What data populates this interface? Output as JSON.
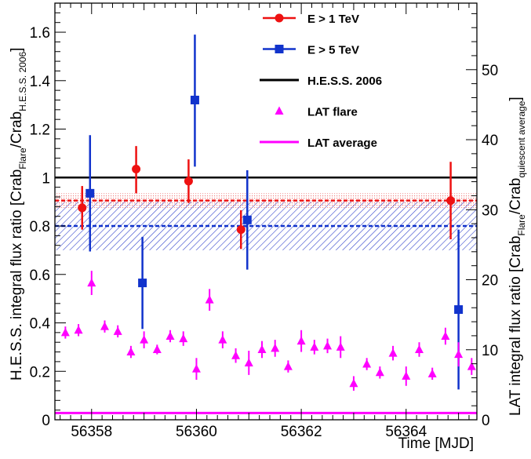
{
  "chart_data": {
    "type": "scatter",
    "xlabel": "Time [MJD]",
    "ylabel_left": "H.E.S.S. integral flux ratio [Crab",
    "ylabel_left_sub": "Flare",
    "ylabel_left_mid": "/Crab",
    "ylabel_left_sub2": "H.E.S.S. 2006",
    "ylabel_left_end": "]",
    "ylabel_right": "LAT integral flux ratio [Crab",
    "ylabel_right_sub": "Flare",
    "ylabel_right_mid": "/Crab",
    "ylabel_right_sub2": "quiescent average",
    "ylabel_right_end": "]",
    "xlim": [
      56357.3,
      56365.35
    ],
    "ylim_left": [
      0,
      1.72
    ],
    "ylim_right": [
      0,
      59.5
    ],
    "xticks": [
      56358,
      56360,
      56362,
      56364
    ],
    "xtick_labels": [
      "56358",
      "56360",
      "56362",
      "56364"
    ],
    "yticks_left": [
      0,
      0.2,
      0.4,
      0.6,
      0.8,
      1,
      1.2,
      1.4,
      1.6
    ],
    "ytick_labels_left": [
      "0",
      "0.2",
      "0.4",
      "0.6",
      "0.8",
      "1",
      "1.2",
      "1.4",
      "1.6"
    ],
    "yticks_right": [
      0,
      10,
      20,
      30,
      40,
      50
    ],
    "ytick_labels_right": [
      "0",
      "10",
      "20",
      "30",
      "40",
      "50"
    ],
    "colors": {
      "e1": "#ee1111",
      "e5": "#1133cc",
      "hess": "#000000",
      "lat": "#ff00ff",
      "band_red": "#f2a0a0",
      "band_blue": "#3344cc"
    },
    "hess_2006": 1.0,
    "lat_average": 0.028,
    "bands": [
      {
        "name": "E > 1 TeV",
        "mean": 0.905,
        "low": 0.875,
        "high": 0.935
      },
      {
        "name": "E > 5 TeV",
        "mean": 0.8,
        "low": 0.7,
        "high": 0.9
      }
    ],
    "series": [
      {
        "name": "E > 1 TeV",
        "marker": "circle",
        "points": [
          {
            "x": 56357.82,
            "y": 0.875,
            "ylo": 0.785,
            "yhi": 0.965
          },
          {
            "x": 56358.85,
            "y": 1.035,
            "ylo": 0.935,
            "yhi": 1.13
          },
          {
            "x": 56359.85,
            "y": 0.985,
            "ylo": 0.895,
            "yhi": 1.075
          },
          {
            "x": 56360.85,
            "y": 0.785,
            "ylo": 0.705,
            "yhi": 0.865
          },
          {
            "x": 56364.85,
            "y": 0.905,
            "ylo": 0.745,
            "yhi": 1.065
          }
        ]
      },
      {
        "name": "E > 5 TeV",
        "marker": "square",
        "points": [
          {
            "x": 56357.97,
            "y": 0.935,
            "ylo": 0.695,
            "yhi": 1.175
          },
          {
            "x": 56358.97,
            "y": 0.565,
            "ylo": 0.375,
            "yhi": 0.755
          },
          {
            "x": 56359.97,
            "y": 1.32,
            "ylo": 1.045,
            "yhi": 1.59
          },
          {
            "x": 56360.97,
            "y": 0.825,
            "ylo": 0.62,
            "yhi": 1.03
          },
          {
            "x": 56365.0,
            "y": 0.455,
            "ylo": 0.125,
            "yhi": 0.785
          }
        ]
      },
      {
        "name": "LAT flare",
        "marker": "triangle",
        "points": [
          {
            "x": 56357.5,
            "y": 0.36,
            "ylo": 0.335,
            "yhi": 0.385
          },
          {
            "x": 56357.75,
            "y": 0.37,
            "ylo": 0.345,
            "yhi": 0.395
          },
          {
            "x": 56358.0,
            "y": 0.565,
            "ylo": 0.515,
            "yhi": 0.615
          },
          {
            "x": 56358.25,
            "y": 0.385,
            "ylo": 0.36,
            "yhi": 0.41
          },
          {
            "x": 56358.5,
            "y": 0.365,
            "ylo": 0.34,
            "yhi": 0.39
          },
          {
            "x": 56358.75,
            "y": 0.28,
            "ylo": 0.255,
            "yhi": 0.305
          },
          {
            "x": 56359.0,
            "y": 0.33,
            "ylo": 0.295,
            "yhi": 0.365
          },
          {
            "x": 56359.25,
            "y": 0.29,
            "ylo": 0.27,
            "yhi": 0.31
          },
          {
            "x": 56359.5,
            "y": 0.345,
            "ylo": 0.32,
            "yhi": 0.37
          },
          {
            "x": 56359.75,
            "y": 0.335,
            "ylo": 0.305,
            "yhi": 0.365
          },
          {
            "x": 56360.0,
            "y": 0.21,
            "ylo": 0.165,
            "yhi": 0.255
          },
          {
            "x": 56360.25,
            "y": 0.495,
            "ylo": 0.45,
            "yhi": 0.54
          },
          {
            "x": 56360.5,
            "y": 0.33,
            "ylo": 0.295,
            "yhi": 0.365
          },
          {
            "x": 56360.75,
            "y": 0.265,
            "ylo": 0.235,
            "yhi": 0.295
          },
          {
            "x": 56361.0,
            "y": 0.235,
            "ylo": 0.185,
            "yhi": 0.285
          },
          {
            "x": 56361.25,
            "y": 0.29,
            "ylo": 0.255,
            "yhi": 0.325
          },
          {
            "x": 56361.5,
            "y": 0.295,
            "ylo": 0.26,
            "yhi": 0.33
          },
          {
            "x": 56361.75,
            "y": 0.22,
            "ylo": 0.195,
            "yhi": 0.245
          },
          {
            "x": 56362.0,
            "y": 0.325,
            "ylo": 0.28,
            "yhi": 0.37
          },
          {
            "x": 56362.25,
            "y": 0.3,
            "ylo": 0.27,
            "yhi": 0.33
          },
          {
            "x": 56362.5,
            "y": 0.305,
            "ylo": 0.275,
            "yhi": 0.335
          },
          {
            "x": 56362.75,
            "y": 0.3,
            "ylo": 0.255,
            "yhi": 0.345
          },
          {
            "x": 56363.0,
            "y": 0.15,
            "ylo": 0.12,
            "yhi": 0.18
          },
          {
            "x": 56363.25,
            "y": 0.23,
            "ylo": 0.205,
            "yhi": 0.255
          },
          {
            "x": 56363.5,
            "y": 0.195,
            "ylo": 0.17,
            "yhi": 0.22
          },
          {
            "x": 56363.75,
            "y": 0.275,
            "ylo": 0.245,
            "yhi": 0.305
          },
          {
            "x": 56364.0,
            "y": 0.18,
            "ylo": 0.14,
            "yhi": 0.22
          },
          {
            "x": 56364.25,
            "y": 0.29,
            "ylo": 0.26,
            "yhi": 0.32
          },
          {
            "x": 56364.5,
            "y": 0.19,
            "ylo": 0.165,
            "yhi": 0.215
          },
          {
            "x": 56364.75,
            "y": 0.345,
            "ylo": 0.31,
            "yhi": 0.38
          },
          {
            "x": 56365.0,
            "y": 0.27,
            "ylo": 0.22,
            "yhi": 0.32
          },
          {
            "x": 56365.25,
            "y": 0.22,
            "ylo": 0.185,
            "yhi": 0.255
          }
        ]
      }
    ],
    "legend": {
      "position": "top-center",
      "entries": [
        {
          "label": "E > 1 TeV",
          "kind": "circle",
          "color": "#ee1111"
        },
        {
          "label": "E > 5 TeV",
          "kind": "square",
          "color": "#1133cc"
        },
        {
          "label": "H.E.S.S. 2006",
          "kind": "line",
          "color": "#000000"
        },
        {
          "label": "LAT flare",
          "kind": "triangle",
          "color": "#ff00ff"
        },
        {
          "label": "LAT average",
          "kind": "line",
          "color": "#ff00ff"
        }
      ]
    }
  }
}
